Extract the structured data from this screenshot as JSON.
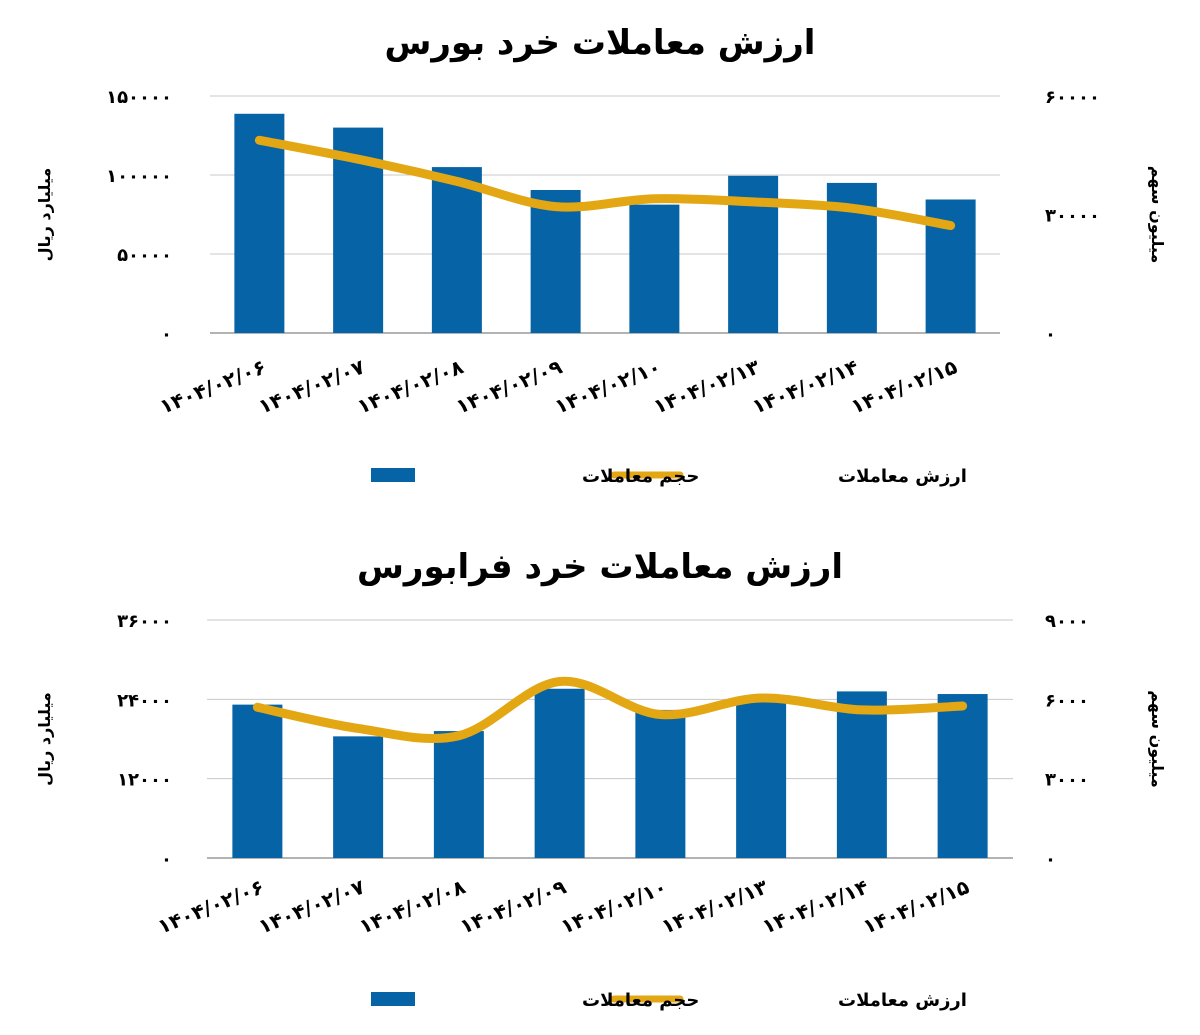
{
  "colors": {
    "bar": "#0563a6",
    "line": "#e3a714",
    "grid": "#c8c8c8",
    "axis": "#9a9a9a",
    "text": "#000000"
  },
  "chart_data": [
    {
      "type": "bar",
      "title": "ارزش معاملات خرد بورس",
      "categories": [
        "۱۴۰۴/۰۲/۰۶",
        "۱۴۰۴/۰۲/۰۷",
        "۱۴۰۴/۰۲/۰۸",
        "۱۴۰۴/۰۲/۰۹",
        "۱۴۰۴/۰۲/۱۰",
        "۱۴۰۴/۰۲/۱۳",
        "۱۴۰۴/۰۲/۱۴",
        "۱۴۰۴/۰۲/۱۵"
      ],
      "ylabel_left": "میلیارد ریال",
      "ylabel_right": "میلیون سهم",
      "ylim_left": [
        0,
        150000
      ],
      "ylim_right": [
        0,
        60000
      ],
      "yticks_left": [
        "۰",
        "۵۰۰۰۰",
        "۱۰۰۰۰۰",
        "۱۵۰۰۰۰"
      ],
      "yticks_right": [
        "۰",
        "۳۰۰۰۰",
        "۶۰۰۰۰"
      ],
      "grid": true,
      "legend_position": "bottom",
      "series": [
        {
          "name": "حجم معاملات",
          "kind": "bar",
          "axis": "right",
          "values": [
            55500,
            52000,
            42000,
            36200,
            32500,
            39800,
            38000,
            33800
          ]
        },
        {
          "name": "ارزش معاملات",
          "kind": "line",
          "axis": "left",
          "values": [
            122000,
            110000,
            96000,
            80000,
            85000,
            83000,
            79000,
            68000
          ]
        }
      ]
    },
    {
      "type": "bar",
      "title": "ارزش معاملات خرد فرابورس",
      "categories": [
        "۱۴۰۴/۰۲/۰۶",
        "۱۴۰۴/۰۲/۰۷",
        "۱۴۰۴/۰۲/۰۸",
        "۱۴۰۴/۰۲/۰۹",
        "۱۴۰۴/۰۲/۱۰",
        "۱۴۰۴/۰۲/۱۳",
        "۱۴۰۴/۰۲/۱۴",
        "۱۴۰۴/۰۲/۱۵"
      ],
      "ylabel_left": "میلیارد ریال",
      "ylabel_right": "میلیون سهم",
      "ylim_left": [
        0,
        36000
      ],
      "ylim_right": [
        0,
        9000
      ],
      "yticks_left": [
        "۰",
        "۱۲۰۰۰",
        "۲۴۰۰۰",
        "۳۶۰۰۰"
      ],
      "yticks_right": [
        "۰",
        "۳۰۰۰",
        "۶۰۰۰",
        "۹۰۰۰"
      ],
      "grid": true,
      "legend_position": "bottom",
      "series": [
        {
          "name": "حجم معاملات",
          "kind": "bar",
          "axis": "right",
          "values": [
            5800,
            4600,
            4800,
            6400,
            5600,
            6000,
            6300,
            6200
          ]
        },
        {
          "name": "ارزش معاملات",
          "kind": "line",
          "axis": "left",
          "values": [
            22800,
            19600,
            18500,
            26700,
            21700,
            24200,
            22400,
            23000
          ]
        }
      ]
    }
  ]
}
